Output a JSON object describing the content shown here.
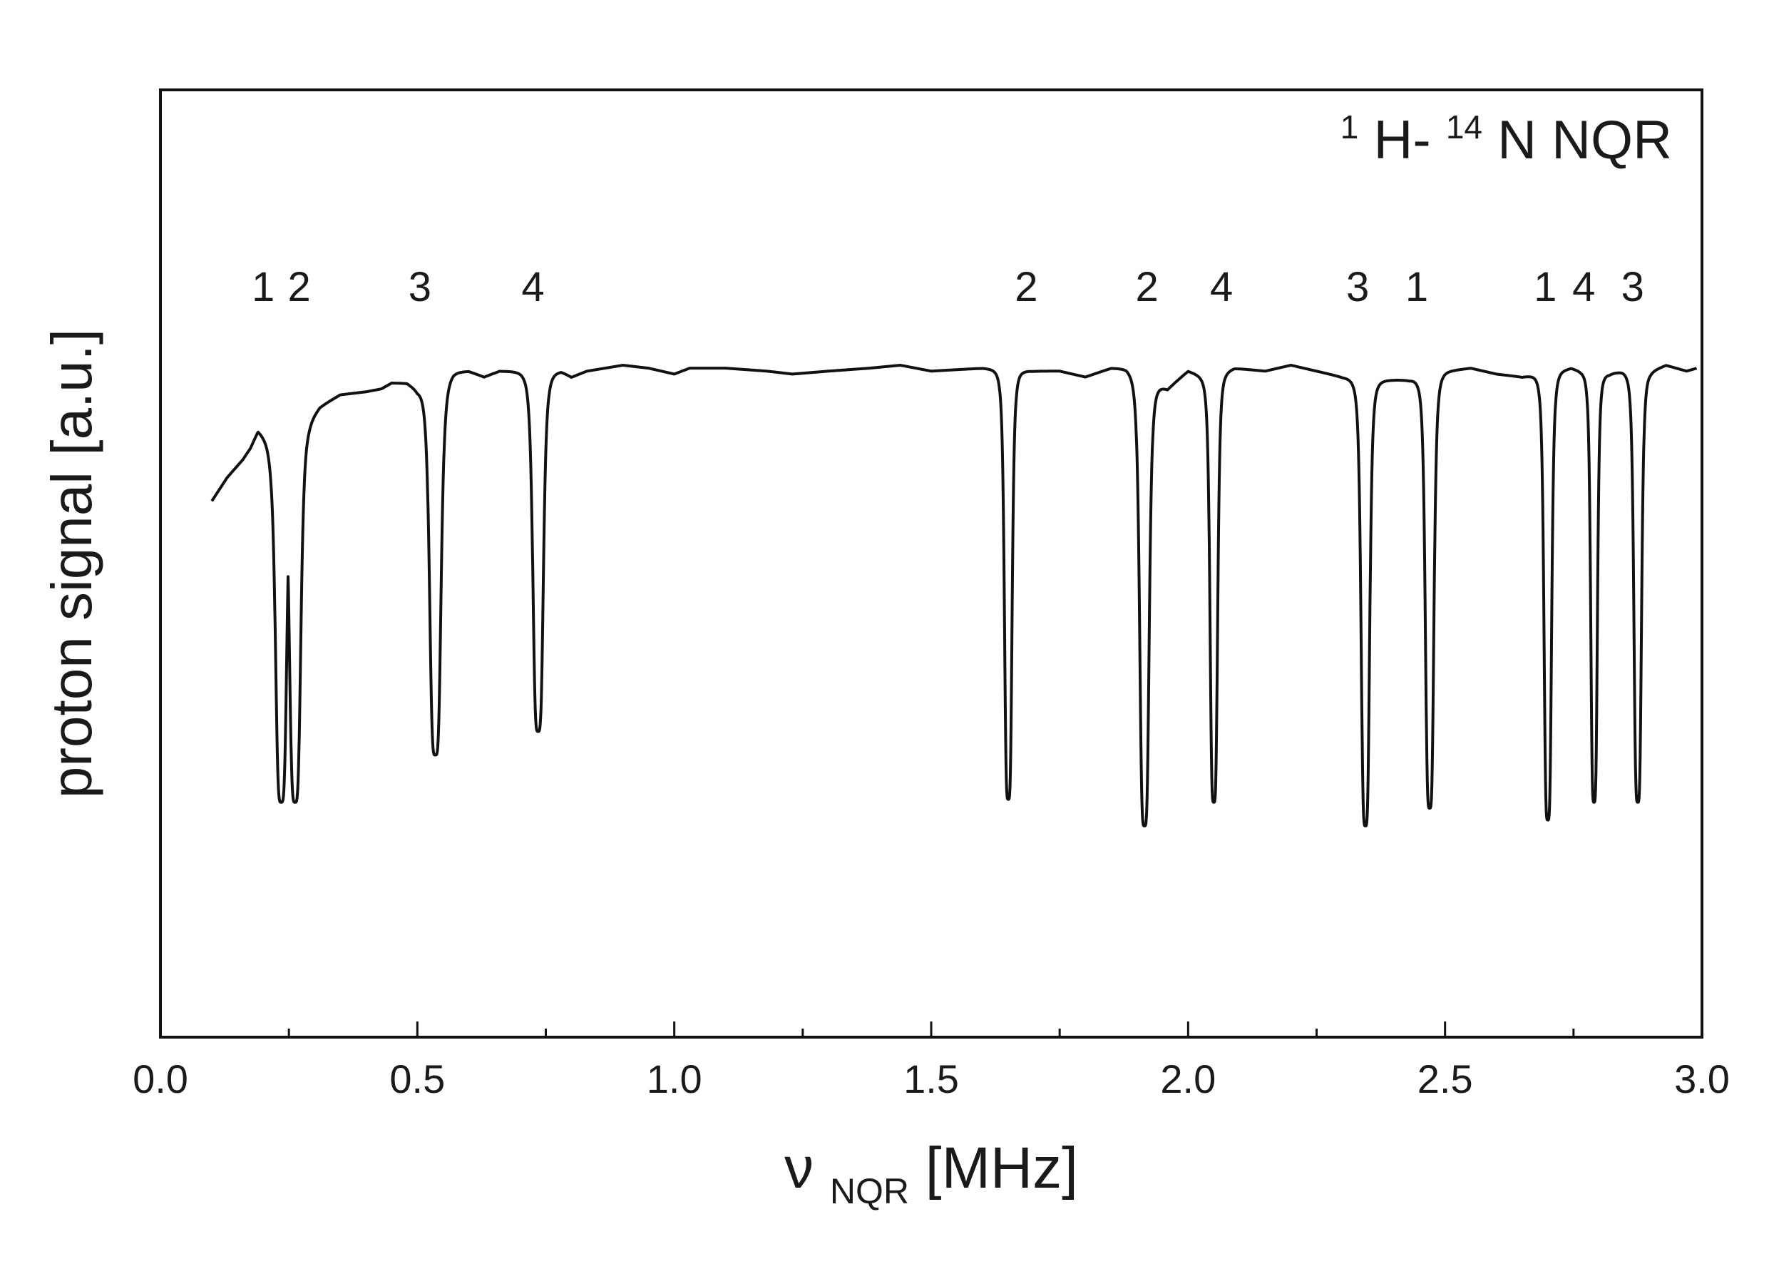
{
  "chart_data": {
    "type": "line",
    "annotation": {
      "prefix_sup": "1",
      "mid": "H-",
      "mid_sup": "14",
      "suffix": "N NQR"
    },
    "xlabel": {
      "main": "ν",
      "sub": "NQR",
      "unit": " [MHz]"
    },
    "ylabel": "proton signal [a.u.]",
    "xlim": [
      0.0,
      3.0
    ],
    "ylim": [
      0.0,
      1.0
    ],
    "x_major_ticks": [
      {
        "value": 0.0,
        "label": "0.0"
      },
      {
        "value": 0.5,
        "label": "0.5"
      },
      {
        "value": 1.0,
        "label": "1.0"
      },
      {
        "value": 1.5,
        "label": "1.5"
      },
      {
        "value": 2.0,
        "label": "2.0"
      },
      {
        "value": 2.5,
        "label": "2.5"
      },
      {
        "value": 3.0,
        "label": "3.0"
      }
    ],
    "x_minor_ticks": [
      0.25,
      0.75,
      1.25,
      1.75,
      2.25,
      2.75
    ],
    "peak_labels": [
      {
        "x": 0.2,
        "label": "1"
      },
      {
        "x": 0.27,
        "label": "2"
      },
      {
        "x": 0.505,
        "label": "3"
      },
      {
        "x": 0.725,
        "label": "4"
      },
      {
        "x": 1.685,
        "label": "2"
      },
      {
        "x": 1.92,
        "label": "2"
      },
      {
        "x": 2.065,
        "label": "4"
      },
      {
        "x": 2.33,
        "label": "3"
      },
      {
        "x": 2.445,
        "label": "1"
      },
      {
        "x": 2.695,
        "label": "1"
      },
      {
        "x": 2.77,
        "label": "4"
      },
      {
        "x": 2.865,
        "label": "3"
      }
    ],
    "baseline_points": [
      [
        0.1,
        0.77
      ],
      [
        0.13,
        0.81
      ],
      [
        0.16,
        0.84
      ],
      [
        0.175,
        0.86
      ],
      [
        0.19,
        0.89
      ],
      [
        0.205,
        0.88
      ],
      [
        0.215,
        0.87
      ],
      [
        0.29,
        0.91
      ],
      [
        0.31,
        0.93
      ],
      [
        0.35,
        0.95
      ],
      [
        0.4,
        0.955
      ],
      [
        0.43,
        0.96
      ],
      [
        0.45,
        0.97
      ],
      [
        0.48,
        0.97
      ],
      [
        0.5,
        0.96
      ],
      [
        0.57,
        0.99
      ],
      [
        0.6,
        0.99
      ],
      [
        0.63,
        0.98
      ],
      [
        0.66,
        0.99
      ],
      [
        0.7,
        0.99
      ],
      [
        0.78,
        0.99
      ],
      [
        0.8,
        0.98
      ],
      [
        0.83,
        0.99
      ],
      [
        0.9,
        1.0
      ],
      [
        0.95,
        0.995
      ],
      [
        1.0,
        0.985
      ],
      [
        1.03,
        0.995
      ],
      [
        1.1,
        0.995
      ],
      [
        1.18,
        0.99
      ],
      [
        1.23,
        0.985
      ],
      [
        1.3,
        0.99
      ],
      [
        1.38,
        0.995
      ],
      [
        1.44,
        1.0
      ],
      [
        1.5,
        0.99
      ],
      [
        1.6,
        0.995
      ],
      [
        1.7,
        0.99
      ],
      [
        1.75,
        0.99
      ],
      [
        1.8,
        0.98
      ],
      [
        1.85,
        0.995
      ],
      [
        1.88,
        0.995
      ],
      [
        1.96,
        0.96
      ],
      [
        2.0,
        0.99
      ],
      [
        2.035,
        0.98
      ],
      [
        2.09,
        0.995
      ],
      [
        2.15,
        0.99
      ],
      [
        2.2,
        1.0
      ],
      [
        2.25,
        0.99
      ],
      [
        2.3,
        0.98
      ],
      [
        2.37,
        0.975
      ],
      [
        2.43,
        0.975
      ],
      [
        2.5,
        0.99
      ],
      [
        2.55,
        0.995
      ],
      [
        2.6,
        0.985
      ],
      [
        2.65,
        0.98
      ],
      [
        2.745,
        0.995
      ],
      [
        2.765,
        0.99
      ],
      [
        2.82,
        0.985
      ],
      [
        2.845,
        0.99
      ],
      [
        2.9,
        0.99
      ],
      [
        2.93,
        1.0
      ],
      [
        2.97,
        0.99
      ],
      [
        2.99,
        0.995
      ]
    ],
    "dips": [
      {
        "center": 0.235,
        "depth": 0.26,
        "width": 0.012
      },
      {
        "center": 0.262,
        "depth": 0.26,
        "width": 0.012
      },
      {
        "center": 0.535,
        "depth": 0.34,
        "width": 0.012
      },
      {
        "center": 0.735,
        "depth": 0.38,
        "width": 0.011
      },
      {
        "center": 1.65,
        "depth": 0.265,
        "width": 0.008
      },
      {
        "center": 1.915,
        "depth": 0.22,
        "width": 0.01
      },
      {
        "center": 2.05,
        "depth": 0.26,
        "width": 0.008
      },
      {
        "center": 2.345,
        "depth": 0.22,
        "width": 0.009
      },
      {
        "center": 2.47,
        "depth": 0.25,
        "width": 0.009
      },
      {
        "center": 2.7,
        "depth": 0.23,
        "width": 0.008
      },
      {
        "center": 2.79,
        "depth": 0.26,
        "width": 0.007
      },
      {
        "center": 2.875,
        "depth": 0.26,
        "width": 0.008
      }
    ],
    "line_color": "#111111",
    "grid": false,
    "legend": "none"
  }
}
